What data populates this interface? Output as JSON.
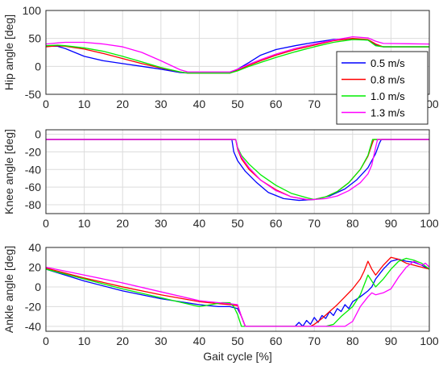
{
  "chart_data": [
    {
      "type": "line",
      "ylabel": "Hip angle [deg]",
      "xlabel": "",
      "xlim": [
        0,
        100
      ],
      "ylim": [
        -50,
        100
      ],
      "xticks": [
        "0",
        "10",
        "20",
        "30",
        "40",
        "50",
        "60",
        "70",
        "80",
        "90",
        "100"
      ],
      "yticks": [
        "-50",
        "0",
        "50",
        "100"
      ],
      "grid": true,
      "legend": "top-right",
      "series": [
        {
          "name": "0.5 m/s",
          "color": "#0000ff",
          "x": [
            0,
            3,
            5,
            10,
            15,
            20,
            25,
            30,
            35,
            37,
            40,
            45,
            48,
            50,
            53,
            56,
            60,
            65,
            70,
            75,
            80,
            84,
            86,
            88,
            100
          ],
          "y": [
            36,
            36,
            32,
            18,
            10,
            5,
            0,
            -5,
            -11,
            -12,
            -12,
            -12,
            -12,
            -5,
            7,
            20,
            30,
            37,
            43,
            48,
            49,
            47,
            38,
            35,
            35
          ]
        },
        {
          "name": "0.8 m/s",
          "color": "#ff0000",
          "x": [
            0,
            3,
            5,
            10,
            15,
            20,
            25,
            30,
            35,
            37,
            40,
            45,
            48,
            50,
            53,
            56,
            60,
            65,
            70,
            75,
            80,
            84,
            86,
            88,
            100
          ],
          "y": [
            35,
            37,
            36,
            31,
            23,
            14,
            5,
            -3,
            -10,
            -12,
            -12,
            -12,
            -12,
            -7,
            2,
            10,
            20,
            30,
            38,
            46,
            50,
            48,
            40,
            35,
            35
          ]
        },
        {
          "name": "1.0 m/s",
          "color": "#00ee00",
          "x": [
            0,
            3,
            5,
            10,
            15,
            20,
            25,
            30,
            35,
            37,
            40,
            45,
            48,
            50,
            53,
            56,
            60,
            65,
            70,
            75,
            80,
            84,
            86,
            88,
            100
          ],
          "y": [
            37,
            38,
            37,
            33,
            27,
            18,
            8,
            -2,
            -10,
            -12,
            -12,
            -12,
            -12,
            -8,
            0,
            7,
            16,
            26,
            35,
            43,
            48,
            47,
            37,
            35,
            35
          ]
        },
        {
          "name": "1.3 m/s",
          "color": "#ff00ff",
          "x": [
            0,
            3,
            5,
            10,
            15,
            20,
            25,
            30,
            35,
            37,
            40,
            45,
            48,
            50,
            53,
            56,
            60,
            65,
            70,
            75,
            80,
            84,
            86,
            88,
            100
          ],
          "y": [
            40,
            42,
            43,
            43,
            40,
            35,
            25,
            10,
            -6,
            -10,
            -10,
            -10,
            -10,
            -5,
            4,
            12,
            22,
            32,
            40,
            47,
            53,
            51,
            45,
            41,
            40
          ]
        }
      ]
    },
    {
      "type": "line",
      "ylabel": "Knee angle [deg]",
      "xlabel": "",
      "xlim": [
        0,
        100
      ],
      "ylim": [
        -90,
        5
      ],
      "xticks": [
        "0",
        "10",
        "20",
        "30",
        "40",
        "50",
        "60",
        "70",
        "80",
        "90",
        "100"
      ],
      "yticks": [
        "0",
        "-20",
        "-40",
        "-60",
        "-80"
      ],
      "grid": true,
      "series": [
        {
          "name": "0.5 m/s",
          "color": "#0000ff",
          "x": [
            0,
            48.5,
            49,
            50,
            52,
            55,
            58,
            62,
            66,
            70,
            74,
            78,
            81,
            84,
            86,
            87,
            87.5,
            100
          ],
          "y": [
            -6,
            -6,
            -20,
            -30,
            -42,
            -55,
            -66,
            -73,
            -75,
            -74,
            -70,
            -62,
            -52,
            -38,
            -22,
            -10,
            -6,
            -6
          ]
        },
        {
          "name": "0.8 m/s",
          "color": "#ff0000",
          "x": [
            0,
            49.5,
            50,
            51,
            53,
            56,
            60,
            64,
            68,
            70,
            73,
            76,
            79,
            82,
            84,
            85,
            85.5,
            100
          ],
          "y": [
            -6,
            -6,
            -17,
            -28,
            -40,
            -52,
            -63,
            -71,
            -74,
            -74,
            -71,
            -65,
            -55,
            -40,
            -25,
            -12,
            -6,
            -6
          ]
        },
        {
          "name": "1.0 m/s",
          "color": "#00ee00",
          "x": [
            0,
            49.5,
            50,
            51,
            53,
            56,
            60,
            64,
            68,
            70,
            73,
            76,
            79,
            82,
            84,
            84.8,
            85.2,
            100
          ],
          "y": [
            -6,
            -6,
            -15,
            -24,
            -34,
            -46,
            -58,
            -67,
            -72,
            -74,
            -71,
            -65,
            -55,
            -40,
            -24,
            -12,
            -6,
            -6
          ]
        },
        {
          "name": "1.3 m/s",
          "color": "#ff00ff",
          "x": [
            0,
            49.5,
            50,
            51,
            53,
            56,
            60,
            64,
            68,
            70,
            73,
            76,
            79,
            82,
            84,
            85,
            86,
            86.5,
            100
          ],
          "y": [
            -6,
            -6,
            -16,
            -26,
            -38,
            -52,
            -64,
            -71,
            -74,
            -74,
            -73,
            -70,
            -64,
            -55,
            -45,
            -35,
            -15,
            -6,
            -6
          ]
        }
      ]
    },
    {
      "type": "line",
      "ylabel": "Ankle angle [deg]",
      "xlabel": "Gait cycle [%]",
      "xlim": [
        0,
        100
      ],
      "ylim": [
        -45,
        40
      ],
      "xticks": [
        "0",
        "10",
        "20",
        "30",
        "40",
        "50",
        "60",
        "70",
        "80",
        "90",
        "100"
      ],
      "yticks": [
        "40",
        "20",
        "0",
        "-20",
        "-40"
      ],
      "grid": true,
      "series": [
        {
          "name": "0.5 m/s",
          "color": "#0000ff",
          "x": [
            0,
            5,
            10,
            20,
            30,
            40,
            45,
            48,
            50,
            51,
            52,
            55,
            60,
            65,
            66,
            67,
            68,
            69,
            70,
            71,
            72,
            73,
            74,
            75,
            76,
            77,
            78,
            79,
            80,
            82,
            84,
            85,
            86,
            88,
            90,
            92,
            94,
            96,
            98,
            100
          ],
          "y": [
            18,
            12,
            6,
            -4,
            -12,
            -18,
            -20,
            -20,
            -22,
            -30,
            -40,
            -40,
            -40,
            -40,
            -36,
            -40,
            -34,
            -38,
            -31,
            -36,
            -29,
            -32,
            -25,
            -29,
            -22,
            -25,
            -18,
            -22,
            -15,
            -10,
            -4,
            0,
            8,
            18,
            26,
            28,
            26,
            25,
            22,
            18
          ]
        },
        {
          "name": "0.8 m/s",
          "color": "#ff0000",
          "x": [
            0,
            5,
            10,
            20,
            30,
            40,
            45,
            48,
            50,
            51,
            52,
            55,
            60,
            65,
            68,
            69,
            70,
            72,
            74,
            76,
            78,
            80,
            82,
            83,
            84,
            85,
            86,
            88,
            90,
            92,
            94,
            96,
            98,
            100
          ],
          "y": [
            19,
            14,
            9,
            0,
            -8,
            -15,
            -17,
            -18,
            -19,
            -30,
            -40,
            -40,
            -40,
            -40,
            -40,
            -40,
            -38,
            -32,
            -25,
            -18,
            -10,
            -2,
            8,
            16,
            26,
            18,
            12,
            22,
            30,
            28,
            24,
            22,
            20,
            18
          ]
        },
        {
          "name": "1.0 m/s",
          "color": "#00ee00",
          "x": [
            0,
            5,
            10,
            20,
            30,
            40,
            43,
            46,
            48,
            49,
            50,
            51,
            52,
            55,
            60,
            65,
            70,
            73,
            75,
            77,
            80,
            82,
            84,
            86,
            88,
            90,
            92,
            94,
            96,
            98,
            100
          ],
          "y": [
            18,
            13,
            8,
            -2,
            -11,
            -20,
            -18,
            -16,
            -16,
            -20,
            -28,
            -40,
            -40,
            -40,
            -40,
            -40,
            -40,
            -40,
            -38,
            -30,
            -20,
            -8,
            12,
            0,
            8,
            18,
            26,
            29,
            27,
            24,
            18
          ]
        },
        {
          "name": "1.3 m/s",
          "color": "#ff00ff",
          "x": [
            0,
            5,
            10,
            20,
            30,
            40,
            45,
            48,
            50,
            51,
            52,
            55,
            60,
            65,
            70,
            75,
            78,
            80,
            82,
            84,
            85,
            86,
            88,
            90,
            92,
            94,
            96,
            97,
            98,
            99,
            100
          ],
          "y": [
            20,
            16,
            12,
            4,
            -5,
            -14,
            -16,
            -17,
            -18,
            -30,
            -40,
            -40,
            -40,
            -40,
            -40,
            -40,
            -40,
            -35,
            -20,
            -10,
            -6,
            -8,
            -6,
            -2,
            10,
            20,
            26,
            24,
            22,
            24,
            20
          ]
        }
      ]
    }
  ],
  "legend": {
    "entries": [
      "0.5 m/s",
      "0.8 m/s",
      "1.0 m/s",
      "1.3 m/s"
    ]
  }
}
